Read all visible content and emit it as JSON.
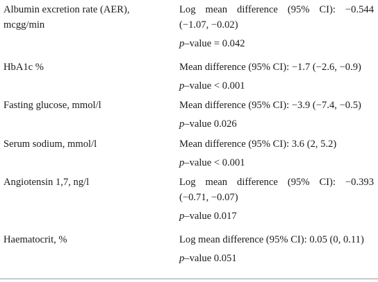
{
  "rows": [
    {
      "label_line1": "Albumin excretion rate (AER),",
      "label_line2": "mcgg/min",
      "result_line1": "Log mean difference (95% CI): −0.544",
      "result_line2": "(−1.07, −0.02)",
      "p_symbol": "p",
      "p_text": "–value = 0.042"
    },
    {
      "label_line1": "HbA1c %",
      "result_line1": "Mean difference (95% CI): −1.7 (−2.6, −0.9)",
      "p_symbol": "p",
      "p_text": "–value < 0.001"
    },
    {
      "label_line1": "Fasting glucose, mmol/l",
      "result_line1": "Mean difference (95% CI): −3.9 (−7.4, −0.5)",
      "p_symbol": "p",
      "p_text": "–value 0.026"
    },
    {
      "label_line1": "Serum sodium, mmol/l",
      "result_line1": "Mean difference (95% CI): 3.6 (2, 5.2)",
      "p_symbol": "p",
      "p_text": "–value < 0.001"
    },
    {
      "label_line1": "Angiotensin 1,7, ng/l",
      "result_line1": "Log mean difference (95% CI): −0.393",
      "result_line2": "(−0.71, −0.07)",
      "p_symbol": "p",
      "p_text": "–value 0.017"
    },
    {
      "label_line1": "Haematocrit, %",
      "result_line1": "Log mean difference (95% CI): 0.05 (0, 0.11)",
      "p_symbol": "p",
      "p_text": "–value 0.051"
    }
  ]
}
